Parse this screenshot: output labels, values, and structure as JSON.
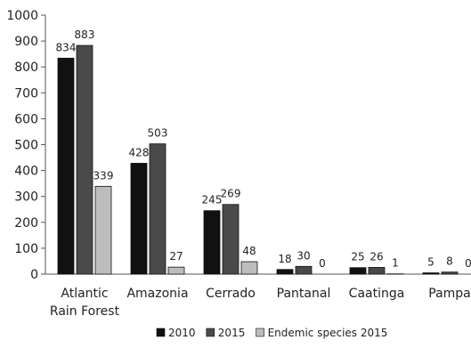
{
  "chart_data": {
    "type": "bar",
    "categories": [
      "Atlantic\nRain Forest",
      "Amazonia",
      "Cerrado",
      "Pantanal",
      "Caatinga",
      "Pampa"
    ],
    "series": [
      {
        "name": "2010",
        "values": [
          834,
          428,
          245,
          18,
          25,
          5
        ],
        "color": "#111111"
      },
      {
        "name": "2015",
        "values": [
          883,
          503,
          269,
          30,
          26,
          8
        ],
        "color": "#4a4a4a"
      },
      {
        "name": "Endemic species 2015",
        "values": [
          339,
          27,
          48,
          0,
          1,
          0
        ],
        "color": "#bdbdbd"
      }
    ],
    "data_labels": [
      [
        "834",
        "428",
        "245",
        "18",
        "25",
        "5"
      ],
      [
        "883",
        "503",
        "269",
        "30",
        "26",
        "8"
      ],
      [
        "339",
        "27",
        "48",
        "0",
        "1",
        "0"
      ]
    ],
    "y_ticks": [
      0,
      100,
      200,
      300,
      400,
      500,
      600,
      700,
      800,
      900,
      1000
    ],
    "ylim": [
      0,
      1000
    ],
    "grid": false,
    "legend_position": "bottom-center",
    "title": "",
    "xlabel": "",
    "ylabel": ""
  }
}
